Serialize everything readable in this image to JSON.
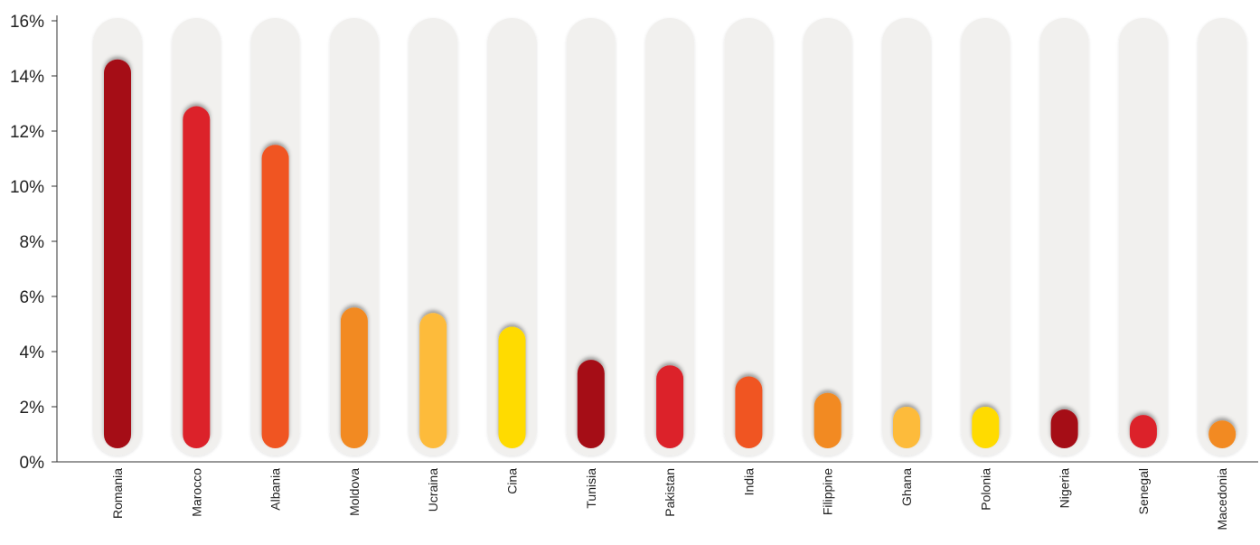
{
  "chart_data": {
    "type": "bar",
    "categories": [
      "Romania",
      "Marocco",
      "Albania",
      "Moldova",
      "Ucraina",
      "Cina",
      "Tunisia",
      "Pakistan",
      "India",
      "Filippine",
      "Ghana",
      "Polonia",
      "Nigeria",
      "Senegal",
      "Macedonia"
    ],
    "values": [
      14.6,
      12.9,
      11.5,
      5.6,
      5.4,
      4.9,
      3.7,
      3.5,
      3.1,
      2.5,
      2.0,
      2.0,
      1.9,
      1.7,
      1.5
    ],
    "unit": "%",
    "title": "",
    "xlabel": "",
    "ylabel": "",
    "ylim": [
      0,
      16
    ],
    "yticks": [
      "0%",
      "2%",
      "4%",
      "6%",
      "8%",
      "10%",
      "12%",
      "14%",
      "16%"
    ],
    "grid": false,
    "legend": "none",
    "bar_colors": [
      "#a50b16",
      "#dc232c",
      "#f05522",
      "#f28a20",
      "#fdbb3a",
      "#ffdb00",
      "#a50b16",
      "#dc232c",
      "#f05522",
      "#f28a20",
      "#fdbb3a",
      "#ffdb00",
      "#a50b16",
      "#dc232c",
      "#f28a20"
    ],
    "track_color": "#f1f0ee"
  }
}
